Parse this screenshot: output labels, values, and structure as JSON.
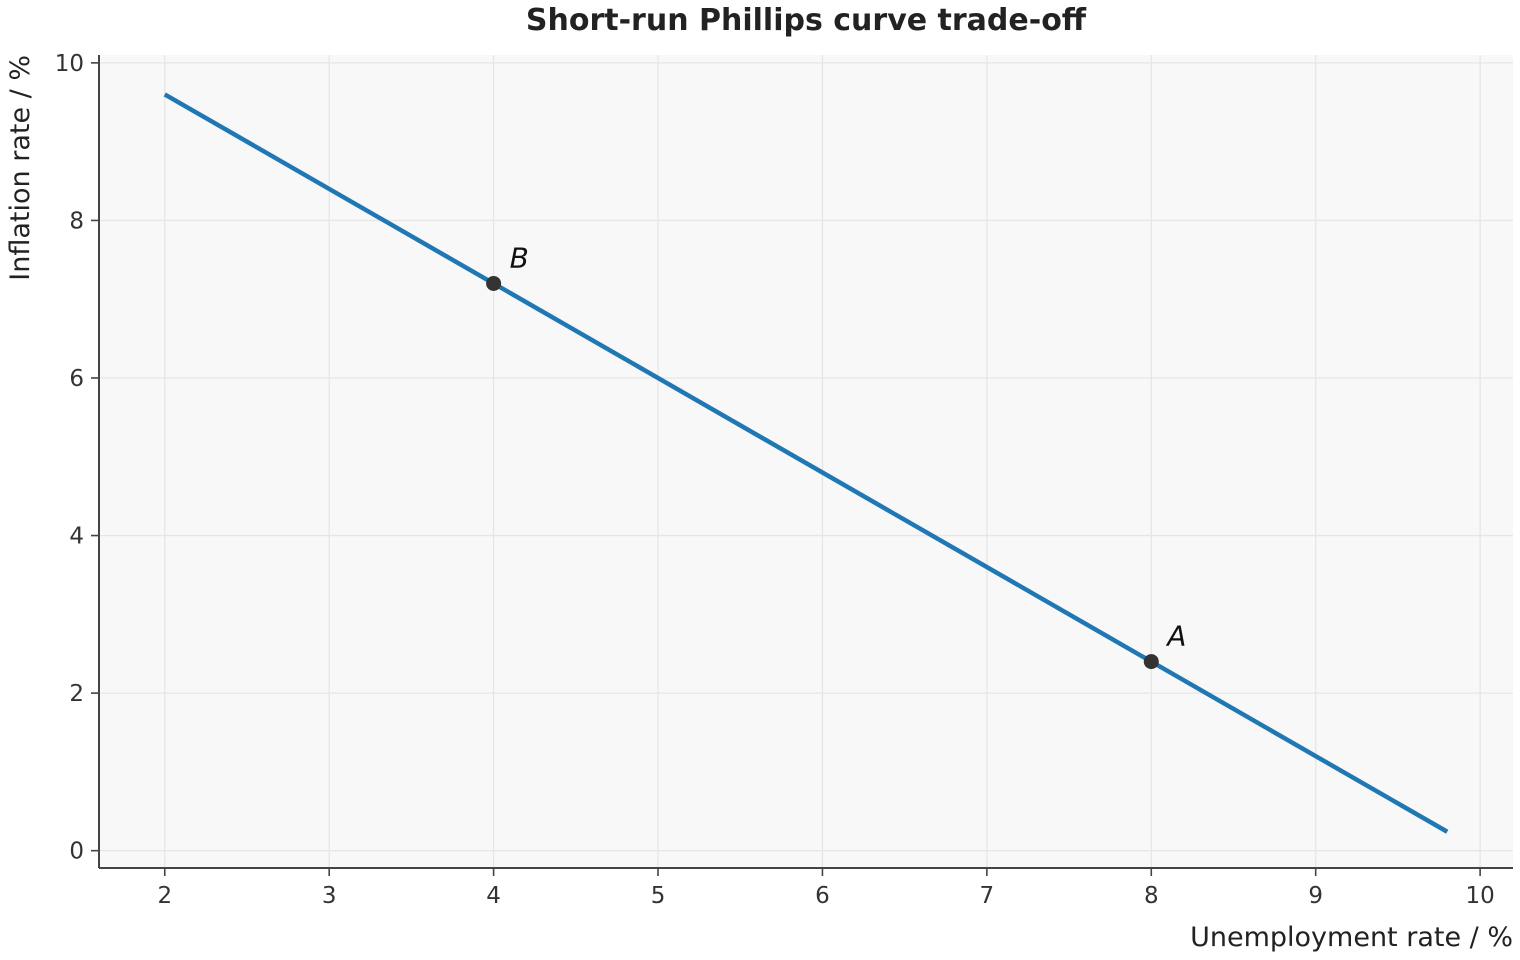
{
  "chart_data": {
    "type": "line",
    "title": "Short-run Phillips curve trade-off",
    "xlabel": "Unemployment rate / %",
    "ylabel": "Inflation rate / %",
    "xlim": [
      1.6,
      10.2
    ],
    "ylim": [
      -0.22,
      10.1
    ],
    "xticks": [
      "2",
      "3",
      "4",
      "5",
      "6",
      "7",
      "8",
      "9",
      "10"
    ],
    "yticks": [
      "0",
      "2",
      "4",
      "6",
      "8",
      "10"
    ],
    "grid": true,
    "series": [
      {
        "x": [
          2.0,
          9.8
        ],
        "y": [
          9.6,
          0.24
        ],
        "color": "#1f77b4"
      }
    ],
    "points": [
      {
        "label": "A",
        "x": 8,
        "y": 2.4
      },
      {
        "label": "B",
        "x": 4,
        "y": 7.2
      }
    ],
    "colors": {
      "line": "#1f77b4",
      "point": "#333333",
      "plot_background": "#f8f8f8",
      "grid": "#e6e6e6",
      "axis": "#444444"
    }
  }
}
